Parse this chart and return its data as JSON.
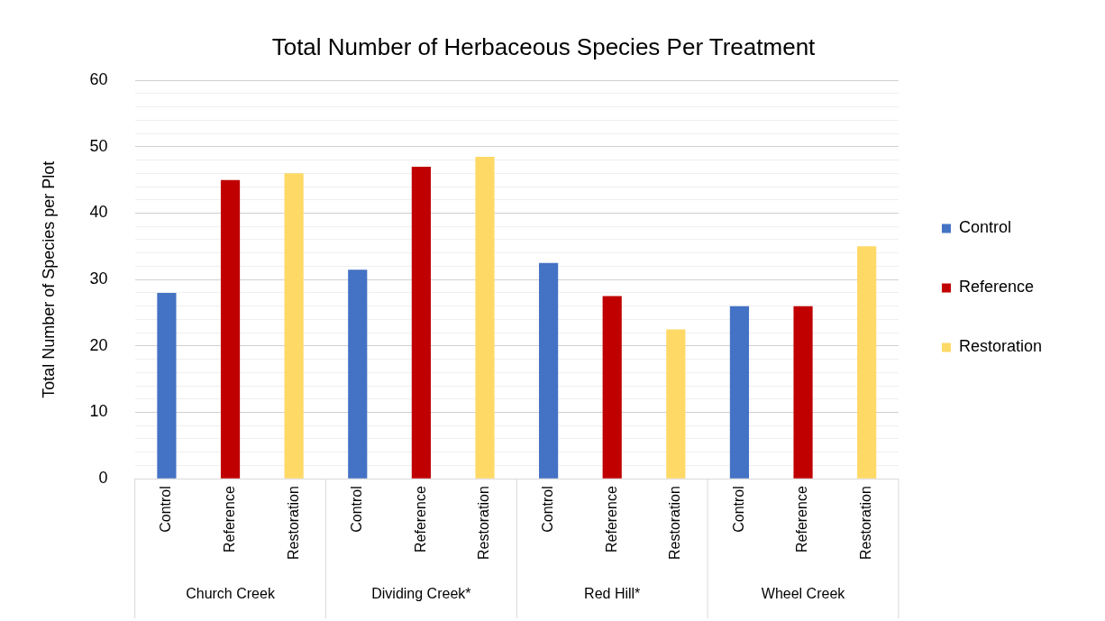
{
  "chart_data": {
    "type": "bar",
    "title": "Total Number of Herbaceous Species Per Treatment",
    "ylabel": "Total Number of Species per Plot",
    "categories": [
      "Control",
      "Reference",
      "Restoration",
      "Control",
      "Reference",
      "Restoration",
      "Control",
      "Reference",
      "Restoration",
      "Control",
      "Reference",
      "Restoration"
    ],
    "annotations": [
      "Church Creek",
      "Dividing Creek*",
      "Red Hill*",
      "Wheel Creek"
    ],
    "series": [
      {
        "name": "Control",
        "color": "#4472c4",
        "values": [
          28,
          null,
          null,
          31.5,
          null,
          null,
          32.5,
          null,
          null,
          26,
          null,
          null
        ]
      },
      {
        "name": "Reference",
        "color": "#c00000",
        "values": [
          null,
          45,
          null,
          null,
          47,
          null,
          null,
          27.5,
          null,
          null,
          26,
          null
        ]
      },
      {
        "name": "Restoration",
        "color": "#ffd966",
        "values": [
          null,
          null,
          46,
          null,
          null,
          48.5,
          null,
          null,
          22.5,
          null,
          null,
          35
        ]
      }
    ],
    "ylim": [
      0,
      60
    ],
    "yticks": [
      0,
      {
        "value": 2,
        "label": null
      },
      {
        "value": 4,
        "label": null
      },
      {
        "value": 6,
        "label": null
      },
      {
        "value": 8,
        "label": null
      },
      10,
      {
        "value": 12,
        "label": null
      },
      {
        "value": 14,
        "label": null
      },
      {
        "value": 16,
        "label": null
      },
      {
        "value": 18,
        "label": null
      },
      20,
      {
        "value": 22,
        "label": null
      },
      {
        "value": 24,
        "label": null
      },
      {
        "value": 26,
        "label": null
      },
      {
        "value": 28,
        "label": null
      },
      30,
      {
        "value": 32,
        "label": null
      },
      {
        "value": 34,
        "label": null
      },
      {
        "value": 36,
        "label": null
      },
      {
        "value": 38,
        "label": null
      },
      40,
      {
        "value": 42,
        "label": null
      },
      {
        "value": 44,
        "label": null
      },
      {
        "value": 46,
        "label": null
      },
      {
        "value": 48,
        "label": null
      },
      50,
      {
        "value": 52,
        "label": null
      },
      {
        "value": 54,
        "label": null
      },
      {
        "value": 56,
        "label": null
      },
      {
        "value": 58,
        "label": null
      },
      60
    ],
    "grid": "y",
    "legend": "right"
  }
}
